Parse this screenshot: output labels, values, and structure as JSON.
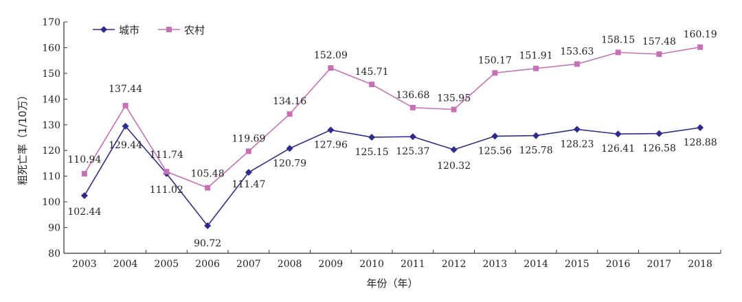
{
  "chart_data": {
    "type": "line",
    "xlabel": "年份（年）",
    "ylabel": "粗死亡率（1/10万）",
    "ylim": [
      80,
      170
    ],
    "yticks": [
      80,
      90,
      100,
      110,
      120,
      130,
      140,
      150,
      160,
      170
    ],
    "grid": false,
    "legend_position": "top-left",
    "categories": [
      "2003",
      "2004",
      "2005",
      "2006",
      "2007",
      "2008",
      "2009",
      "2010",
      "2011",
      "2012",
      "2013",
      "2014",
      "2015",
      "2016",
      "2017",
      "2018"
    ],
    "series": [
      {
        "name": "城市",
        "color": "#2e2b8c",
        "marker": "diamond",
        "values": [
          102.44,
          129.44,
          111.02,
          90.72,
          111.47,
          120.79,
          127.96,
          125.15,
          125.37,
          120.32,
          125.56,
          125.78,
          128.23,
          126.41,
          126.58,
          128.88
        ],
        "labels": [
          "102.44",
          "129.44",
          "111.02",
          "90.72",
          "111.47",
          "120.79",
          "127.96",
          "125.15",
          "125.37",
          "120.32",
          "125.56",
          "125.78",
          "128.23",
          "126.41",
          "126.58",
          "128.88"
        ]
      },
      {
        "name": "农村",
        "color": "#c86fb6",
        "marker": "square",
        "values": [
          110.94,
          137.44,
          111.74,
          105.48,
          119.69,
          134.16,
          152.09,
          145.71,
          136.68,
          135.95,
          150.17,
          151.91,
          153.63,
          158.15,
          157.48,
          160.19
        ],
        "labels": [
          "110.94",
          "137.44",
          "111.74",
          "105.48",
          "119.69",
          "134.16",
          "152.09",
          "145.71",
          "136.68",
          "135.95",
          "150.17",
          "151.91",
          "153.63",
          "158.15",
          "157.48",
          "160.19"
        ]
      }
    ]
  }
}
